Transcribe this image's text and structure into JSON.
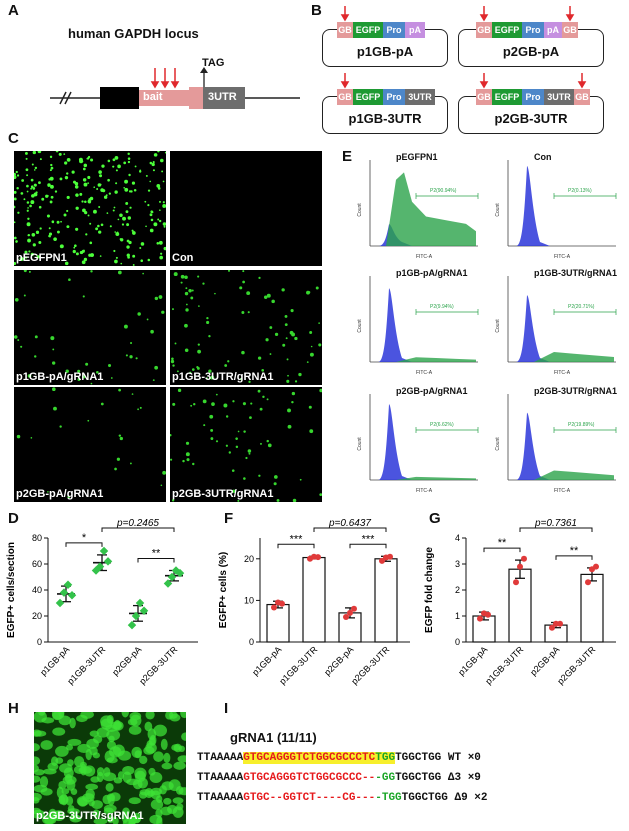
{
  "panels": {
    "A": "A",
    "B": "B",
    "C": "C",
    "D": "D",
    "E": "E",
    "F": "F",
    "G": "G",
    "H": "H",
    "I": "I"
  },
  "panelA": {
    "title": "human GAPDH locus",
    "bait": "bait",
    "utr": "3UTR",
    "tag": "TAG"
  },
  "panelB": {
    "seg": {
      "gb": "GB",
      "egfp": "EGFP",
      "pro": "Pro",
      "pa": "pA",
      "utr": "3UTR"
    },
    "plasmids": [
      "p1GB-pA",
      "p2GB-pA",
      "p1GB-3UTR",
      "p2GB-3UTR"
    ]
  },
  "panelC": {
    "labels": [
      "pEGFPN1",
      "Con",
      "p1GB-pA/gRNA1",
      "p1GB-3UTR/gRNA1",
      "p2GB-pA/gRNA1",
      "p2GB-3UTR/gRNA1"
    ]
  },
  "panelE": {
    "titles": [
      "pEGFPN1",
      "Con",
      "p1GB-pA/gRNA1",
      "p1GB-3UTR/gRNA1",
      "p2GB-pA/gRNA1",
      "p2GB-3UTR/gRNA1"
    ],
    "gates": [
      "P2(90.94%)",
      "P2(0.13%)",
      "P2(9.94%)",
      "P2(20.71%)",
      "P2(6.62%)",
      "P2(19.89%)"
    ],
    "gate_fraction": [
      0.9094,
      0.0013,
      0.0994,
      0.2071,
      0.0662,
      0.1989
    ],
    "xlabel": "FITC-A",
    "ylabel": "Count",
    "colors": {
      "con": "#2b36d9",
      "pos": "#2aa34a"
    }
  },
  "chart_data": [
    {
      "type": "scatter",
      "panel": "D",
      "categories": [
        "p1GB-pA",
        "p1GB-3UTR",
        "p2GB-pA",
        "p2GB-3UTR"
      ],
      "values": [
        37,
        61,
        22,
        51
      ],
      "sem": [
        6,
        6,
        6,
        4
      ],
      "points": [
        [
          30,
          38,
          44,
          36
        ],
        [
          55,
          58,
          70,
          62
        ],
        [
          13,
          20,
          30,
          24
        ],
        [
          45,
          50,
          55,
          53
        ]
      ],
      "ylabel": "EGFP+ cells/section",
      "ylim": [
        0,
        80
      ],
      "yticks": [
        0,
        20,
        40,
        60,
        80
      ],
      "significance": [
        {
          "a": 0,
          "b": 1,
          "label": "*"
        },
        {
          "a": 2,
          "b": 3,
          "label": "**"
        },
        {
          "a": 1,
          "b": 3,
          "label": "p=0.2465"
        }
      ]
    },
    {
      "type": "bar",
      "panel": "F",
      "categories": [
        "p1GB-pA",
        "p1GB-3UTR",
        "p2GB-pA",
        "p2GB-3UTR"
      ],
      "values": [
        9,
        20.3,
        7,
        20
      ],
      "sem": [
        0.8,
        0.3,
        1.2,
        0.6
      ],
      "points": [
        [
          8.3,
          9.5,
          9.2
        ],
        [
          20,
          20.5,
          20.4
        ],
        [
          6,
          7,
          8
        ],
        [
          19.5,
          20.3,
          20.5
        ]
      ],
      "ylabel": "EGFP+ cells (%)",
      "ylim": [
        0,
        25
      ],
      "yticks": [
        0,
        10,
        20
      ],
      "significance": [
        {
          "a": 0,
          "b": 1,
          "label": "***"
        },
        {
          "a": 2,
          "b": 3,
          "label": "***"
        },
        {
          "a": 1,
          "b": 3,
          "label": "p=0.6437"
        }
      ]
    },
    {
      "type": "bar",
      "panel": "G",
      "categories": [
        "p1GB-pA",
        "p1GB-3UTR",
        "p2GB-pA",
        "p2GB-3UTR"
      ],
      "values": [
        1,
        2.8,
        0.65,
        2.6
      ],
      "sem": [
        0.15,
        0.35,
        0.1,
        0.25
      ],
      "points": [
        [
          0.9,
          1.1,
          1.05
        ],
        [
          2.3,
          2.9,
          3.2
        ],
        [
          0.55,
          0.7,
          0.7
        ],
        [
          2.3,
          2.8,
          2.9
        ]
      ],
      "ylabel": "EGFP fold change",
      "ylim": [
        0,
        4
      ],
      "yticks": [
        0,
        1,
        2,
        3,
        4
      ],
      "significance": [
        {
          "a": 0,
          "b": 1,
          "label": "**"
        },
        {
          "a": 2,
          "b": 3,
          "label": "**"
        },
        {
          "a": 1,
          "b": 3,
          "label": "p=0.7361"
        }
      ]
    }
  ],
  "panelH": {
    "caption": "p2GB-3UTR/sgRNA1"
  },
  "panelI": {
    "title": "gRNA1 (11/11)",
    "rows": [
      {
        "prefix": "TTAAAAA",
        "red": "GTGCAGGGTCTGGCGCCCTC",
        "green": "TGG",
        "suffix": "TGGCTGG",
        "type": "WT",
        "count": "×0"
      },
      {
        "prefix": "TTAAAAA",
        "red": "GTGCAGGGTCTGGCGCCC--",
        "green": "-GG",
        "suffix": "TGGCTGG",
        "type": "Δ3",
        "count": "×9"
      },
      {
        "prefix": "TTAAAAA",
        "red": "GTGC--GGTCT----CG---",
        "green": "-TGG",
        "suffix": "TGGCTGG",
        "type": "Δ9",
        "count": "×2"
      }
    ]
  }
}
